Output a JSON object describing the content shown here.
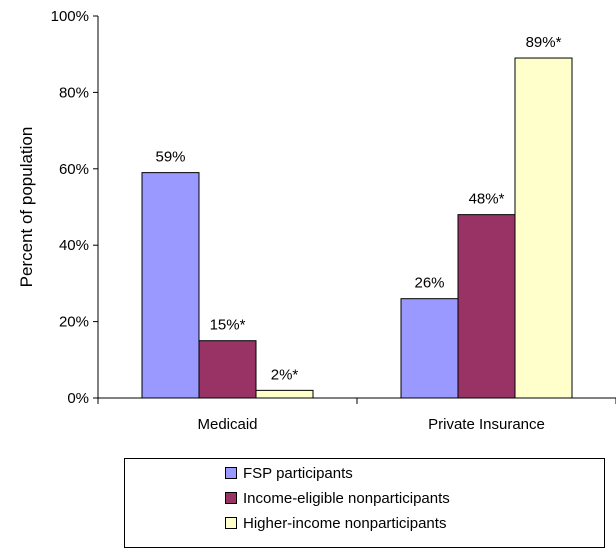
{
  "chart_data": {
    "type": "bar",
    "categories": [
      "Medicaid",
      "Private Insurance"
    ],
    "series": [
      {
        "name": "FSP participants",
        "values": [
          59,
          26
        ],
        "labels": [
          "59%",
          "26%"
        ],
        "color": "#9999ff"
      },
      {
        "name": "Income-eligible nonparticipants",
        "values": [
          15,
          48
        ],
        "labels": [
          "15%*",
          "48%*"
        ],
        "color": "#993366"
      },
      {
        "name": "Higher-income nonparticipants",
        "values": [
          2,
          89
        ],
        "labels": [
          "2%*",
          "89%*"
        ],
        "color": "#ffffcc"
      }
    ],
    "ylabel": "Percent of population",
    "ylim": [
      0,
      100
    ],
    "yticks": [
      "0%",
      "20%",
      "40%",
      "60%",
      "80%",
      "100%"
    ],
    "grid": false,
    "legend_position": "bottom"
  }
}
